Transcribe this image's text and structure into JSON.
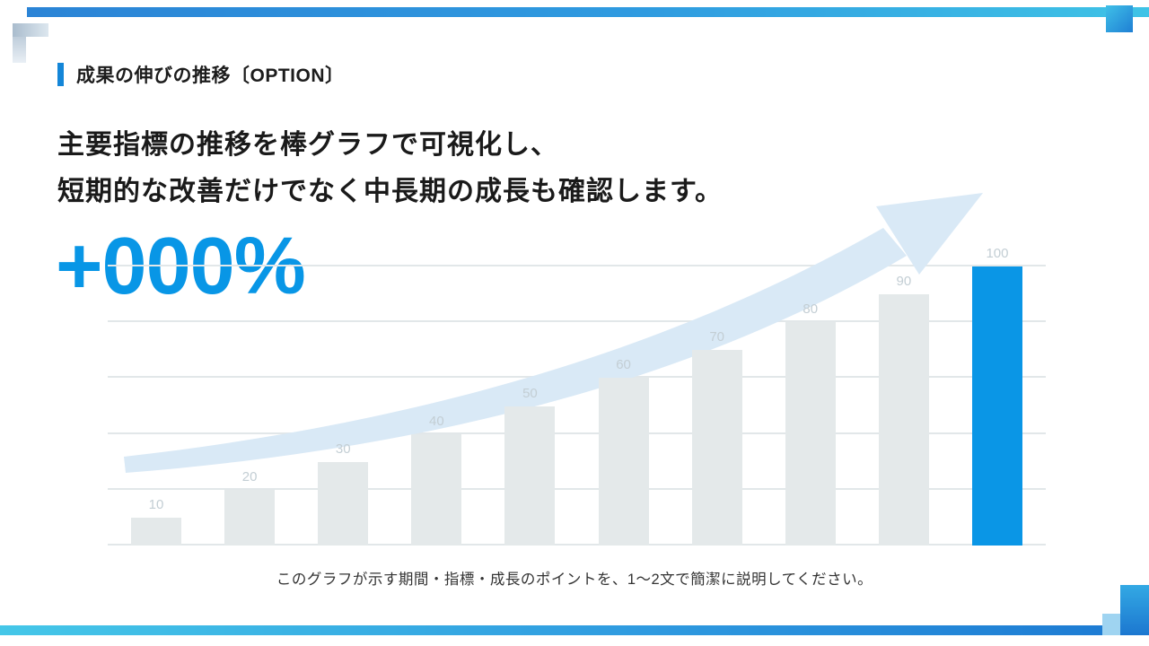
{
  "header": {
    "title": "成果の伸びの推移〔OPTION〕"
  },
  "body": {
    "line1": "主要指標の推移を棒グラフで可視化し、",
    "line2": "短期的な改善だけでなく中長期の成長も確認します。",
    "metric": "+000%"
  },
  "caption": "このグラフが示す期間・指標・成長のポイントを、1〜2文で簡潔に説明してください。",
  "colors": {
    "accent_blue": "#0a96e6",
    "header_accent": "#1486d8",
    "bar_gray": "#e4e9ea",
    "label_gray": "#c3ced4",
    "arrow_blue": "#d9e9f6",
    "grid_gray": "#e2e7e9",
    "frame_gradient_start": "#2b84d6",
    "frame_gradient_end": "#3fc3e6"
  },
  "chart_data": {
    "type": "bar",
    "categories": [
      "",
      "",
      "",
      "",
      "",
      "",
      "",
      "",
      "",
      ""
    ],
    "values": [
      10,
      20,
      30,
      40,
      50,
      60,
      70,
      80,
      90,
      100
    ],
    "data_labels": [
      "10",
      "20",
      "30",
      "40",
      "50",
      "60",
      "70",
      "80",
      "90",
      "100"
    ],
    "highlight_index": 9,
    "title": "",
    "xlabel": "",
    "ylabel": "",
    "ylim": [
      0,
      105
    ],
    "gridlines": [
      0,
      20,
      40,
      60,
      80,
      100
    ],
    "grid": true,
    "legend": false
  }
}
